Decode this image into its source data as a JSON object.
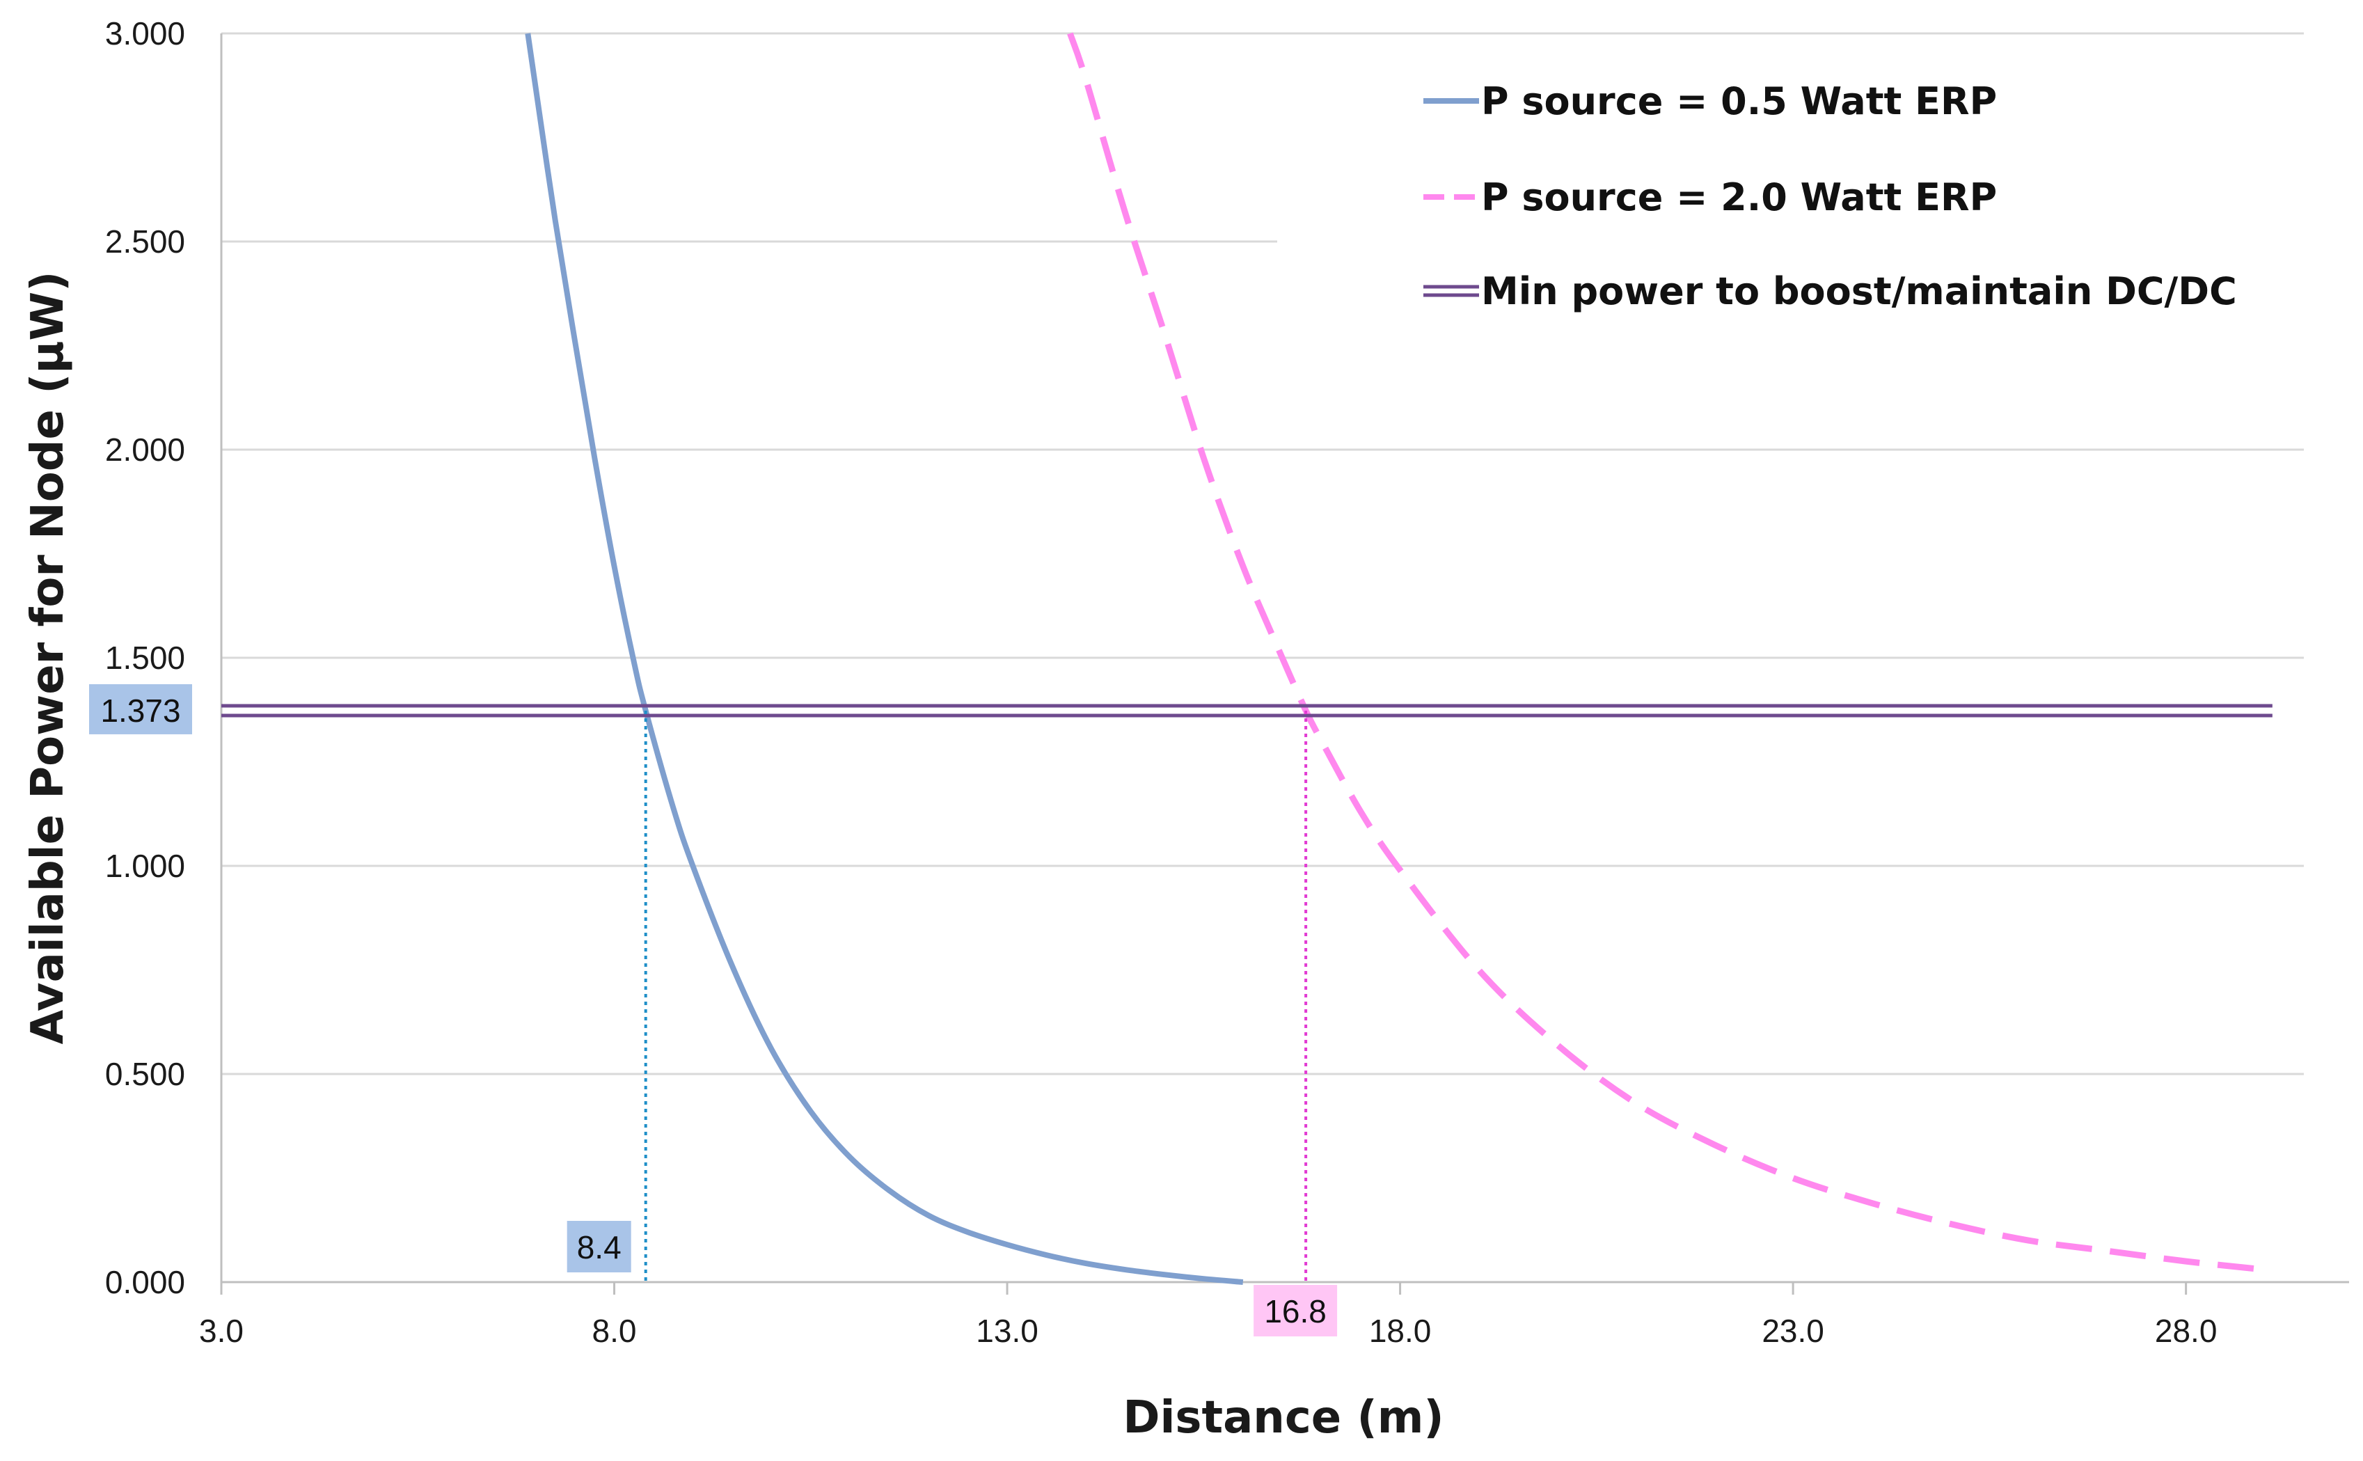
{
  "chart_data": {
    "type": "line",
    "xlabel": "Distance (m)",
    "ylabel": "Available Power for Node (µW)",
    "xlim": [
      3.0,
      29.5
    ],
    "ylim": [
      0.0,
      3.0
    ],
    "x_ticks": [
      "3.0",
      "8.0",
      "13.0",
      "18.0",
      "23.0",
      "28.0"
    ],
    "x_tick_values": [
      3.0,
      8.0,
      13.0,
      18.0,
      23.0,
      28.0
    ],
    "y_ticks": [
      "0.000",
      "0.500",
      "1.000",
      "1.500",
      "2.000",
      "2.500",
      "3.000"
    ],
    "y_tick_values": [
      0.0,
      0.5,
      1.0,
      1.5,
      2.0,
      2.5,
      3.0
    ],
    "grid": "horizontal",
    "legend_position": "top-right",
    "series": [
      {
        "name": "P source = 0.5 Watt ERP",
        "color": "#7f9fce",
        "style": "solid",
        "x": [
          6.9,
          7.0,
          7.25,
          7.5,
          7.75,
          8.0,
          8.25,
          8.4,
          8.75,
          9.0,
          9.5,
          10.0,
          10.5,
          11.0,
          11.5,
          12.0,
          12.5,
          13.0,
          13.5,
          14.0,
          14.5,
          15.0,
          15.5,
          16.0
        ],
        "y": [
          3.0,
          2.87,
          2.55,
          2.26,
          1.98,
          1.72,
          1.49,
          1.373,
          1.14,
          1.0,
          0.76,
          0.56,
          0.41,
          0.3,
          0.22,
          0.16,
          0.12,
          0.09,
          0.065,
          0.045,
          0.03,
          0.018,
          0.008,
          0.0
        ]
      },
      {
        "name": "P source = 2.0 Watt ERP",
        "color": "#ff88ee",
        "style": "dashed",
        "x": [
          13.8,
          14.0,
          14.5,
          15.0,
          15.5,
          16.0,
          16.5,
          16.8,
          17.0,
          17.5,
          18.0,
          19.0,
          20.0,
          21.0,
          22.0,
          23.0,
          24.0,
          25.0,
          26.0,
          27.0,
          28.0,
          29.0
        ],
        "y": [
          3.0,
          2.89,
          2.57,
          2.28,
          1.98,
          1.72,
          1.5,
          1.373,
          1.3,
          1.13,
          0.99,
          0.75,
          0.57,
          0.43,
          0.33,
          0.25,
          0.19,
          0.14,
          0.1,
          0.075,
          0.05,
          0.03
        ]
      },
      {
        "name": "Min power to boost/maintain DC/DC",
        "color": "#6e4a8e",
        "style": "double",
        "x": [
          3.0,
          29.1
        ],
        "y": [
          1.373,
          1.373
        ]
      }
    ],
    "annotations": [
      {
        "label": "1.373",
        "axis": "y",
        "value": 1.373,
        "color": "#a9c4e8"
      },
      {
        "label": "8.4",
        "axis": "x",
        "value": 8.4,
        "color": "#a9c4e8",
        "drop_line_color": "#1f8fc8"
      },
      {
        "label": "16.8",
        "axis": "x",
        "value": 16.8,
        "color": "#ffc6f5",
        "drop_line_color": "#e23bd3"
      }
    ]
  }
}
